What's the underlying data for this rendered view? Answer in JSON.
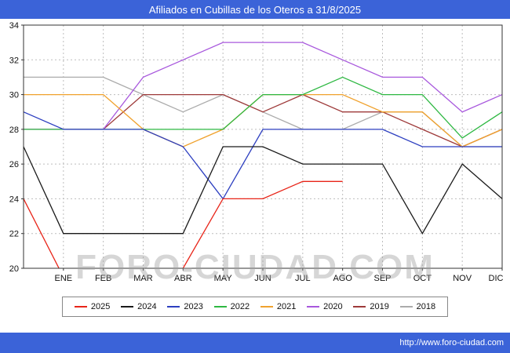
{
  "page": {
    "title": "Afiliados en Cubillas de los Oteros a 31/8/2025",
    "url": "http://www.foro-ciudad.com",
    "watermark": "FORO-CIUDAD.COM",
    "colors": {
      "frame_blue": "#3b63d8",
      "plot_border": "#333333",
      "grid": "#bdbdbd"
    }
  },
  "chart_data": {
    "type": "line",
    "title": "Afiliados en Cubillas de los Oteros a 31/8/2025",
    "x_tick_labels": [
      "ENE",
      "FEB",
      "MAR",
      "ABR",
      "MAY",
      "JUN",
      "JUL",
      "AGO",
      "SEP",
      "OCT",
      "NOV",
      "DIC"
    ],
    "ylim": [
      20,
      34
    ],
    "y_ticks": [
      20,
      22,
      24,
      26,
      28,
      30,
      32,
      34
    ],
    "grid": true,
    "legend_position": "bottom",
    "series": [
      {
        "name": "2025",
        "color": "#e82519",
        "start": 24,
        "values": [
          19.5,
          19,
          19,
          20,
          24,
          24,
          25,
          25,
          null,
          null,
          null,
          null
        ]
      },
      {
        "name": "2024",
        "color": "#1a1a1a",
        "start": 27,
        "values": [
          22,
          22,
          22,
          22,
          27,
          27,
          26,
          26,
          26,
          22,
          26,
          24
        ]
      },
      {
        "name": "2023",
        "color": "#2d3fc0",
        "start": 29,
        "values": [
          28,
          28,
          28,
          27,
          24,
          28,
          28,
          28,
          28,
          27,
          27,
          27
        ]
      },
      {
        "name": "2022",
        "color": "#2eb842",
        "start": 28,
        "values": [
          28,
          28,
          28,
          28,
          28,
          30,
          30,
          31,
          30,
          30,
          27.5,
          29
        ]
      },
      {
        "name": "2021",
        "color": "#f0a22e",
        "start": 30,
        "values": [
          30,
          30,
          28,
          27,
          28,
          30,
          30,
          30,
          29,
          29,
          27,
          28
        ]
      },
      {
        "name": "2020",
        "color": "#a858dd",
        "start": 28,
        "values": [
          28,
          28,
          31,
          32,
          33,
          33,
          33,
          32,
          31,
          31,
          29,
          30
        ]
      },
      {
        "name": "2019",
        "color": "#9e3a3a",
        "start": 28,
        "values": [
          28,
          28,
          30,
          30,
          30,
          29,
          30,
          29,
          29,
          28,
          27,
          28
        ]
      },
      {
        "name": "2018",
        "color": "#ababab",
        "start": 31,
        "values": [
          31,
          31,
          30,
          29,
          30,
          29,
          28,
          28,
          29,
          29,
          27,
          27
        ]
      }
    ]
  }
}
